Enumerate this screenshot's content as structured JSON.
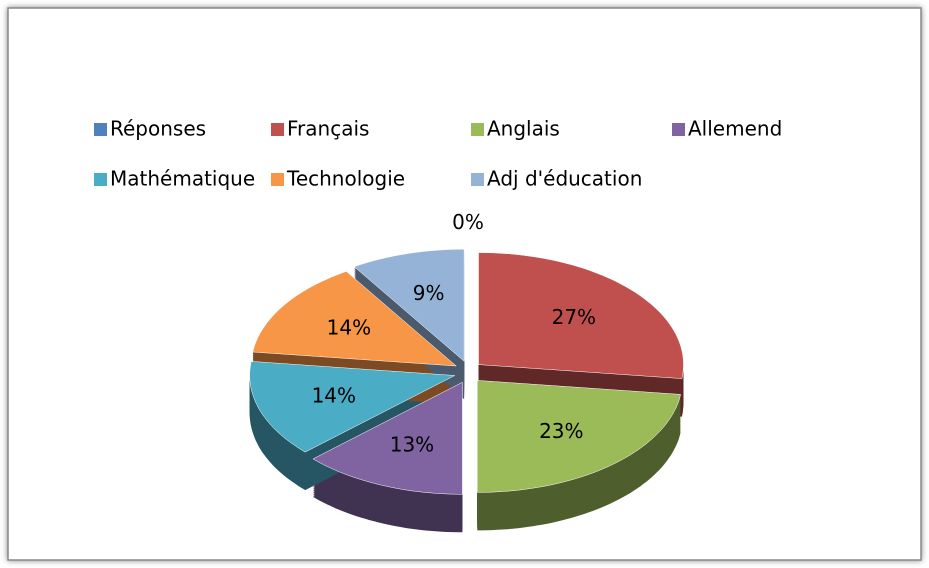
{
  "chart_data": {
    "type": "pie",
    "categories": [
      "Réponses",
      "Français",
      "Anglais",
      "Allemend",
      "Mathématique",
      "Technologie",
      "Adj d'éducation"
    ],
    "values": [
      0,
      27,
      23,
      13,
      14,
      14,
      9
    ],
    "value_labels": [
      "0%",
      "27%",
      "23%",
      "13%",
      "14%",
      "14%",
      "9%"
    ],
    "colors": [
      "#4f81bd",
      "#c0504d",
      "#9bbb59",
      "#8064a2",
      "#4bacc6",
      "#f79646",
      "#95b3d7"
    ],
    "legend": "top"
  }
}
